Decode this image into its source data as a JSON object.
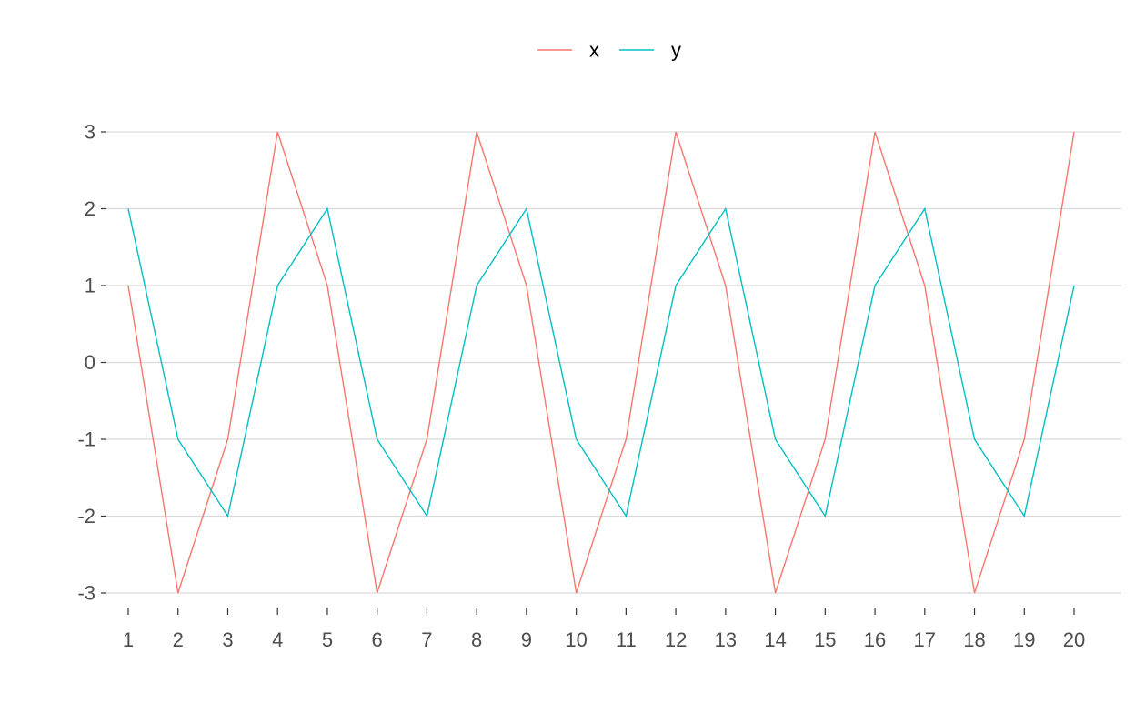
{
  "chart_data": {
    "type": "line",
    "title": "",
    "xlabel": "",
    "ylabel": "",
    "x": [
      1,
      2,
      3,
      4,
      5,
      6,
      7,
      8,
      9,
      10,
      11,
      12,
      13,
      14,
      15,
      16,
      17,
      18,
      19,
      20
    ],
    "x_tick_labels": [
      "1",
      "2",
      "3",
      "4",
      "5",
      "6",
      "7",
      "8",
      "9",
      "10",
      "11",
      "12",
      "13",
      "14",
      "15",
      "16",
      "17",
      "18",
      "19",
      "20"
    ],
    "y_ticks": [
      3,
      2,
      1,
      0,
      -1,
      -2,
      -3
    ],
    "y_tick_labels": [
      "3",
      "2",
      "1",
      "0",
      "-1",
      "-2",
      "-3"
    ],
    "ylim": [
      -3,
      3
    ],
    "grid": "horizontal",
    "legend_position": "top",
    "series": [
      {
        "name": "x",
        "color": "#F8766D",
        "values": [
          1,
          -3,
          -1,
          3,
          1,
          -3,
          -1,
          3,
          1,
          -3,
          -1,
          3,
          1,
          -3,
          -1,
          3,
          1,
          -3,
          -1,
          3
        ]
      },
      {
        "name": "y",
        "color": "#00BFC4",
        "values": [
          2,
          -1,
          -2,
          1,
          2,
          -1,
          -2,
          1,
          2,
          -1,
          -2,
          1,
          2,
          -1,
          -2,
          1,
          2,
          -1,
          -2,
          1
        ]
      }
    ]
  }
}
